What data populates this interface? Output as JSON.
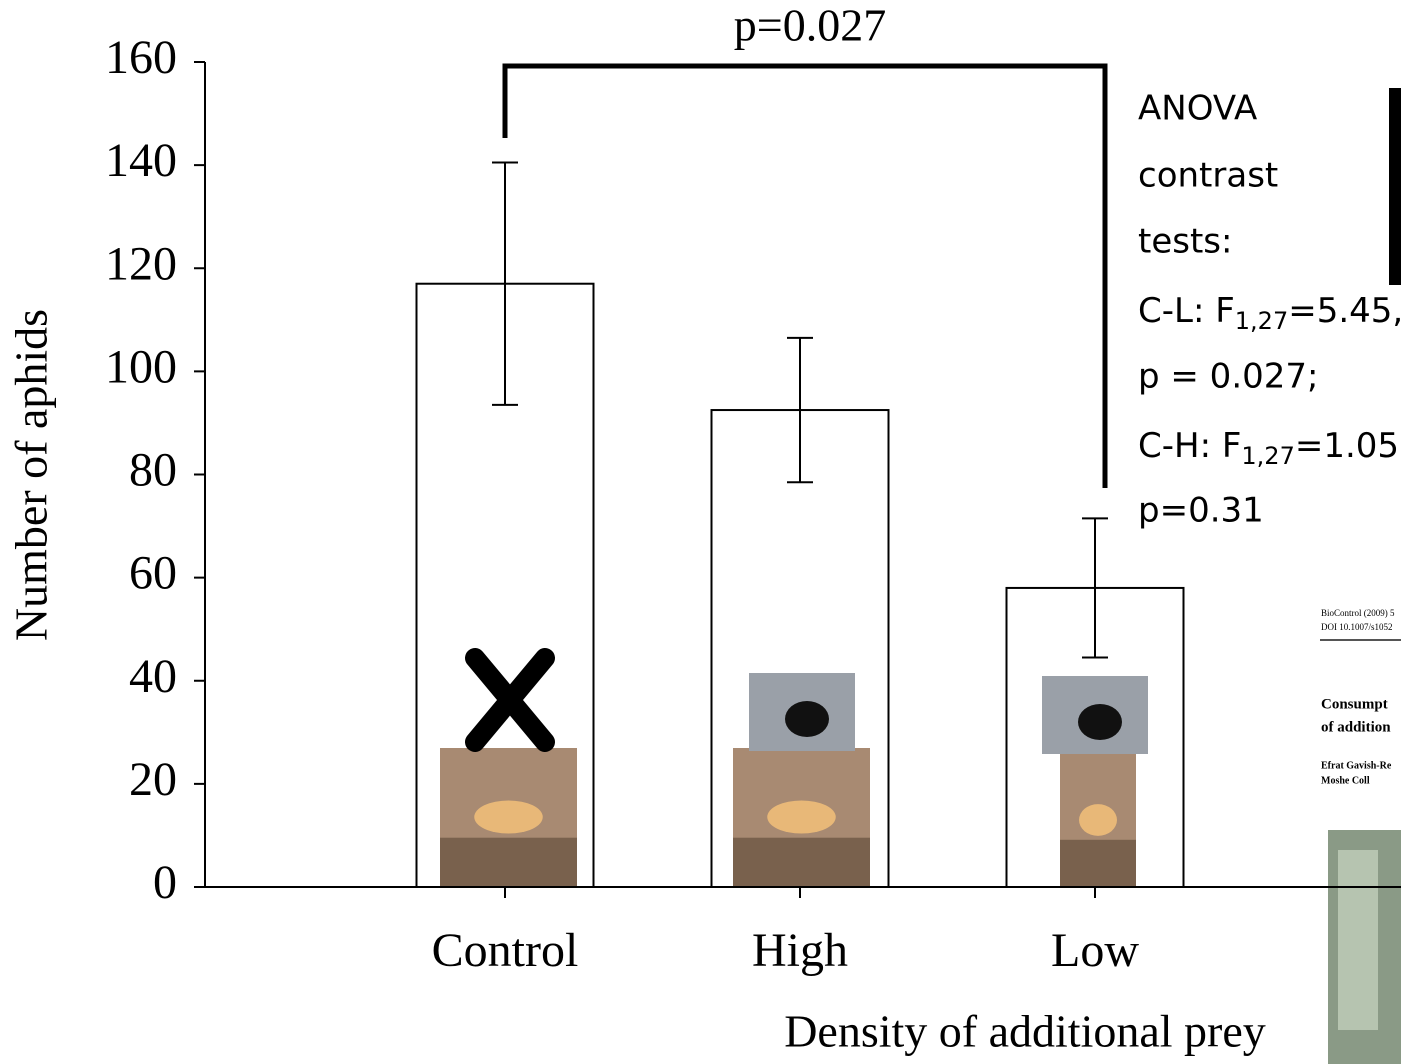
{
  "chart_data": {
    "type": "bar",
    "x_label": "Density of additional prey",
    "y_label": "Number of aphids",
    "categories": [
      "Control",
      "High",
      "Low"
    ],
    "values": [
      117,
      92.5,
      58
    ],
    "errors": [
      23.5,
      14,
      13.5
    ],
    "color": "#ffffff",
    "ylim": [
      0,
      160
    ],
    "yticks": [
      0,
      20,
      40,
      60,
      80,
      100,
      120,
      140,
      160
    ],
    "comparison_label": "p=0.027",
    "annotation_lines": [
      "ANOVA",
      "contrast",
      "tests:",
      {
        "before": "C-L: F",
        "sub": "1,27",
        "after": "=5.45,"
      },
      "p = 0.027;",
      {
        "before": "C-H: F",
        "sub": "1,27",
        "after": "=1.05,"
      },
      "p=0.31"
    ]
  },
  "inset_paper": [
    "BioControl (2009) 5",
    "DOI 10.1007/s1052",
    "Consumpt",
    "of addition",
    "Efrat Gavish-Re",
    "Moshe Coll"
  ]
}
